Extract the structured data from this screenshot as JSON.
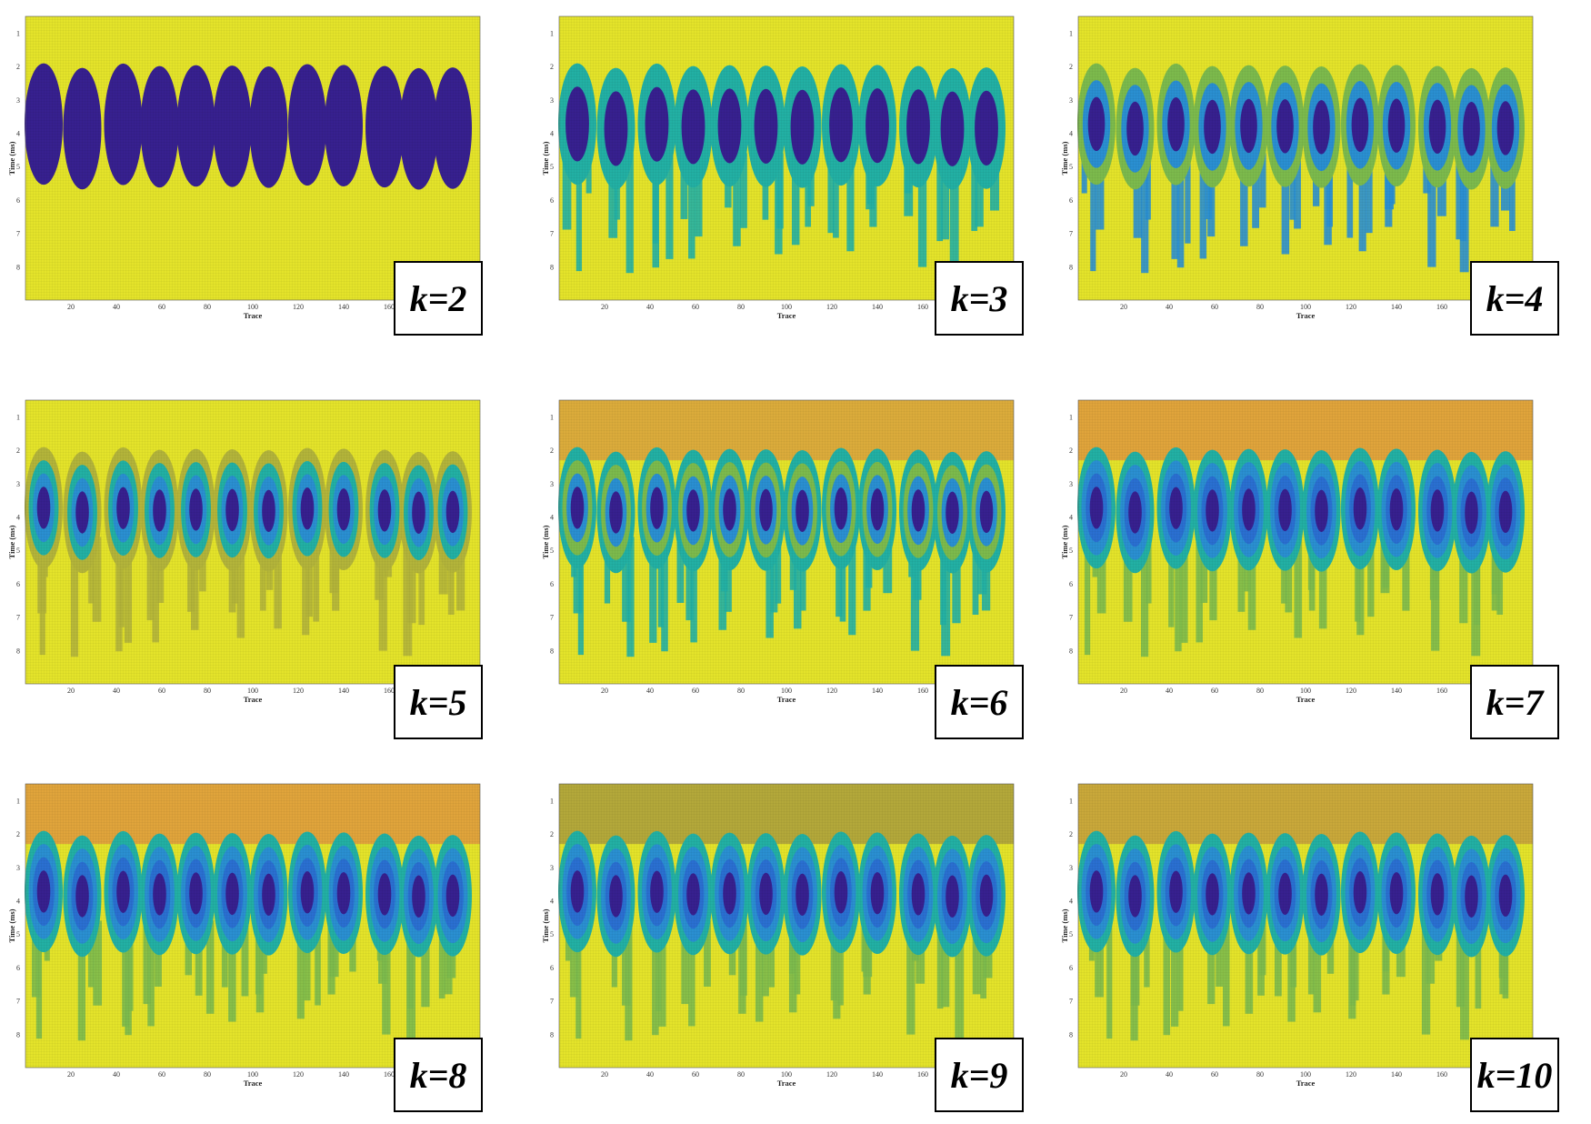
{
  "figure": {
    "panels": [
      {
        "label": "k=2"
      },
      {
        "label": "k=3"
      },
      {
        "label": "k=4"
      },
      {
        "label": "k=5"
      },
      {
        "label": "k=6"
      },
      {
        "label": "k=7"
      },
      {
        "label": "k=8"
      },
      {
        "label": "k=9"
      },
      {
        "label": "k=10"
      }
    ]
  },
  "chart_data": [
    {
      "type": "heatmap",
      "k": 2,
      "xlabel": "Trace",
      "ylabel": "Time (ms)",
      "xticks": [
        20,
        40,
        60,
        80,
        100,
        120,
        140,
        160
      ],
      "yticks": [
        1,
        2,
        3,
        4,
        5,
        6,
        7,
        8
      ],
      "xlim": [
        0,
        200
      ],
      "ylim": [
        0.5,
        9
      ],
      "anomaly_centers_trace": [
        8,
        25,
        43,
        59,
        75,
        91,
        107,
        124,
        140,
        158,
        173,
        188
      ],
      "anomaly_center_time": 3.8,
      "colors": [
        "#e4e32a",
        "#37208f"
      ]
    },
    {
      "type": "heatmap",
      "k": 3,
      "xlabel": "Trace",
      "ylabel": "Time (ms)",
      "xticks": [
        20,
        40,
        60,
        80,
        100,
        120,
        140,
        160
      ],
      "yticks": [
        1,
        2,
        3,
        4,
        5,
        6,
        7,
        8
      ],
      "xlim": [
        0,
        200
      ],
      "ylim": [
        0.5,
        9
      ],
      "anomaly_centers_trace": [
        8,
        25,
        43,
        59,
        75,
        91,
        107,
        124,
        140,
        158,
        173,
        188
      ],
      "anomaly_center_time": 3.8,
      "colors": [
        "#e4e32a",
        "#22b0a4",
        "#37208f"
      ]
    },
    {
      "type": "heatmap",
      "k": 4,
      "xlabel": "Trace",
      "ylabel": "Time (ms)",
      "xticks": [
        20,
        40,
        60,
        80,
        100,
        120,
        140,
        160
      ],
      "yticks": [
        1,
        2,
        3,
        4,
        5,
        6,
        7,
        8
      ],
      "xlim": [
        0,
        200
      ],
      "ylim": [
        0.5,
        9
      ],
      "anomaly_centers_trace": [
        8,
        25,
        43,
        59,
        75,
        91,
        107,
        124,
        140,
        158,
        173,
        188
      ],
      "anomaly_center_time": 3.8,
      "colors": [
        "#e4e32a",
        "#7cba4c",
        "#2a8fd1",
        "#37208f"
      ]
    },
    {
      "type": "heatmap",
      "k": 5,
      "xlabel": "Trace",
      "ylabel": "Time (ms)",
      "xticks": [
        20,
        40,
        60,
        80,
        100,
        120,
        140,
        160
      ],
      "yticks": [
        1,
        2,
        3,
        4,
        5,
        6,
        7,
        8
      ],
      "xlim": [
        0,
        200
      ],
      "ylim": [
        0.5,
        9
      ],
      "anomaly_centers_trace": [
        8,
        25,
        43,
        59,
        75,
        91,
        107,
        124,
        140,
        158,
        173,
        188
      ],
      "anomaly_center_time": 3.8,
      "colors": [
        "#e4e32a",
        "#b3b43a",
        "#22b0a4",
        "#2a8fd1",
        "#37208f"
      ]
    },
    {
      "type": "heatmap",
      "k": 6,
      "xlabel": "Trace",
      "ylabel": "Time (ms)",
      "xticks": [
        20,
        40,
        60,
        80,
        100,
        120,
        140,
        160
      ],
      "yticks": [
        1,
        2,
        3,
        4,
        5,
        6,
        7,
        8
      ],
      "xlim": [
        0,
        200
      ],
      "ylim": [
        0.5,
        9
      ],
      "anomaly_centers_trace": [
        8,
        25,
        43,
        59,
        75,
        91,
        107,
        124,
        140,
        158,
        173,
        188
      ],
      "anomaly_center_time": 3.8,
      "colors": [
        "#dbab3b",
        "#e4e32a",
        "#22b0a4",
        "#7cba4c",
        "#2a8fd1",
        "#37208f"
      ]
    },
    {
      "type": "heatmap",
      "k": 7,
      "xlabel": "Trace",
      "ylabel": "Time (ms)",
      "xticks": [
        20,
        40,
        60,
        80,
        100,
        120,
        140,
        160
      ],
      "yticks": [
        1,
        2,
        3,
        4,
        5,
        6,
        7,
        8
      ],
      "xlim": [
        0,
        200
      ],
      "ylim": [
        0.5,
        9
      ],
      "anomaly_centers_trace": [
        8,
        25,
        43,
        59,
        75,
        91,
        107,
        124,
        140,
        158,
        173,
        188
      ],
      "anomaly_center_time": 3.8,
      "colors": [
        "#e0a43b",
        "#e4e32a",
        "#7cba4c",
        "#22b0a4",
        "#2a8fd1",
        "#2a6fd1",
        "#37208f"
      ]
    },
    {
      "type": "heatmap",
      "k": 8,
      "xlabel": "Trace",
      "ylabel": "Time (ms)",
      "xticks": [
        20,
        40,
        60,
        80,
        100,
        120,
        140,
        160
      ],
      "yticks": [
        1,
        2,
        3,
        4,
        5,
        6,
        7,
        8
      ],
      "xlim": [
        0,
        200
      ],
      "ylim": [
        0.5,
        9
      ],
      "anomaly_centers_trace": [
        8,
        25,
        43,
        59,
        75,
        91,
        107,
        124,
        140,
        158,
        173,
        188
      ],
      "anomaly_center_time": 3.8,
      "colors": [
        "#e0a43b",
        "#e4e32a",
        "#7cba4c",
        "#22b0a4",
        "#2a8fd1",
        "#2a6fd1",
        "#37208f"
      ]
    },
    {
      "type": "heatmap",
      "k": 9,
      "xlabel": "Trace",
      "ylabel": "Time (ms)",
      "xticks": [
        20,
        40,
        60,
        80,
        100,
        120,
        140,
        160
      ],
      "yticks": [
        1,
        2,
        3,
        4,
        5,
        6,
        7,
        8
      ],
      "xlim": [
        0,
        200
      ],
      "ylim": [
        0.5,
        9
      ],
      "anomaly_centers_trace": [
        8,
        25,
        43,
        59,
        75,
        91,
        107,
        124,
        140,
        158,
        173,
        188
      ],
      "anomaly_center_time": 3.8,
      "colors": [
        "#b3a83a",
        "#e4e32a",
        "#7cba4c",
        "#22b0a4",
        "#2a8fd1",
        "#2a6fd1",
        "#37208f"
      ]
    },
    {
      "type": "heatmap",
      "k": 10,
      "xlabel": "Trace",
      "ylabel": "Time (ms)",
      "xticks": [
        20,
        40,
        60,
        80,
        100,
        120,
        140,
        160
      ],
      "yticks": [
        1,
        2,
        3,
        4,
        5,
        6,
        7,
        8
      ],
      "xlim": [
        0,
        200
      ],
      "ylim": [
        0.5,
        9
      ],
      "anomaly_centers_trace": [
        8,
        25,
        43,
        59,
        75,
        91,
        107,
        124,
        140,
        158,
        173,
        188
      ],
      "anomaly_center_time": 3.8,
      "colors": [
        "#c9a83a",
        "#e4e32a",
        "#7cba4c",
        "#22b0a4",
        "#2a8fd1",
        "#2a6fd1",
        "#37208f"
      ]
    }
  ]
}
